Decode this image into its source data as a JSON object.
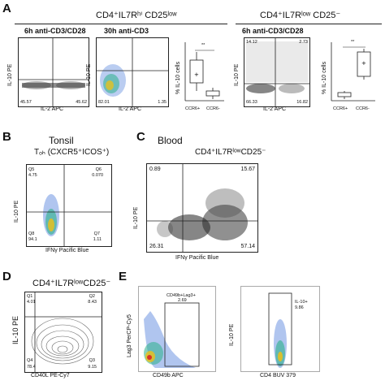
{
  "panelA": {
    "label": "A",
    "group1_title": "CD4⁺IL7Rʰⁱ CD25ˡᵒʷ",
    "group2_title": "CD4⁺IL7Rˡᵒʷ CD25⁻",
    "plot1": {
      "title": "6h anti-CD3/CD28",
      "ylabel": "IL-10 PE",
      "xlabel": "IL-2 APC",
      "q_ul": "",
      "q_ur": "",
      "q_ll": "45.57",
      "q_lr": "45.62"
    },
    "plot2": {
      "title": "30h anti-CD3",
      "ylabel": "IL-10 PE",
      "xlabel": "IL-2 APC",
      "q_ul": "",
      "q_ur": "",
      "q_ll": "82.01",
      "q_lr": "1.35"
    },
    "box1": {
      "ylabel": "% IL-10 cells",
      "sig": "**",
      "cat1": "CCR6+",
      "cat2": "CCR6-"
    },
    "plot3": {
      "title": "6h anti-CD3/CD28",
      "ylabel": "IL-10 PE",
      "xlabel": "IL-2 APC",
      "q_ul": "14.12",
      "q_ur": "2.73",
      "q_ll": "66.33",
      "q_lr": "16.82"
    },
    "box2": {
      "ylabel": "% IL-10 cells",
      "sig": "**",
      "cat1": "CCR6+",
      "cat2": "CCR6-"
    }
  },
  "panelB": {
    "label": "B",
    "title": "Tonsil",
    "subtitle": "Tₒₕ (CXCR5⁺ICOS⁺)",
    "ylabel": "IL-10 PE",
    "xlabel": "IFNγ Pacific Blue",
    "q1": "Q5",
    "q1v": "4.75",
    "q2": "Q6",
    "q2v": "0.070",
    "q3": "Q8",
    "q3v": "94.1",
    "q4": "Q7",
    "q4v": "1.11"
  },
  "panelC": {
    "label": "C",
    "title": "Blood",
    "subtitle": "CD4⁺IL7RˡᵒʷCD25⁻",
    "ylabel": "IL-10 PE",
    "xlabel": "IFNγ Pacific Blue",
    "q_ul": "0.89",
    "q_ur": "15.67",
    "q_ll": "26.31",
    "q_lr": "57.14"
  },
  "panelD": {
    "label": "D",
    "title": "CD4⁺IL7RˡᵒʷCD25⁻",
    "ylabel": "IL-10 PE",
    "xlabel": "CD40L PE-Cy7",
    "q_ul": "Q1",
    "q_ulv": "4.01",
    "q_ur": "Q2",
    "q_urv": "8.43",
    "q_ll": "Q4",
    "q_llv": "78.4",
    "q_lr": "Q3",
    "q_lrv": "9.15"
  },
  "panelE": {
    "label": "E",
    "plot1": {
      "ylabel": "Lag3 PerCP-Cy5",
      "xlabel": "CD49b APC",
      "gate": "CD49b+Lag3+",
      "gate_v": "2.69"
    },
    "plot2": {
      "ylabel": "IL-10 PE",
      "xlabel": "CD4 BUV 379",
      "gate": "IL-10+",
      "gate_v": "9.86"
    }
  }
}
